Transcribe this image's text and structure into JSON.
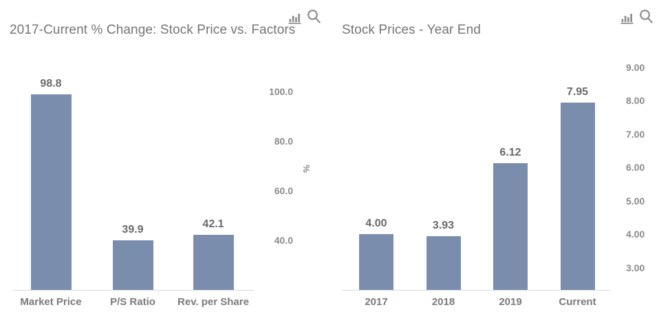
{
  "colors": {
    "bar": "#7a8dac",
    "title_text": "#757575",
    "value_label_text": "#696969",
    "category_label_text": "#7a7a7a",
    "tick_label_text": "#8b8b8b",
    "axis_line": "#d9d9d9",
    "icon": "#8a8a8a"
  },
  "toolbar": {
    "chart_type_button_icon": "bar-chart-icon",
    "zoom_button_icon": "magnifier-icon"
  },
  "chart_data": [
    {
      "type": "bar",
      "title": "2017-Current % Change: Stock Price vs. Factors",
      "categories": [
        "Market Price",
        "P/S Ratio",
        "Rev. per Share"
      ],
      "values": [
        98.8,
        39.9,
        42.1
      ],
      "value_labels": [
        "98.8",
        "39.9",
        "42.1"
      ],
      "xlabel": "",
      "ylabel": "%",
      "ylim": [
        20,
        110
      ],
      "y_ticks": [
        {
          "label": "100.0",
          "value": 100
        },
        {
          "label": "80.0",
          "value": 80
        },
        {
          "label": "60.0",
          "value": 60
        },
        {
          "label": "40.0",
          "value": 40
        }
      ],
      "y_axis_side": "right",
      "grid": false,
      "legend": "none"
    },
    {
      "type": "bar",
      "title": "Stock Prices - Year End",
      "categories": [
        "2017",
        "2018",
        "2019",
        "Current"
      ],
      "values": [
        4.0,
        3.93,
        6.12,
        7.95
      ],
      "value_labels": [
        "4.00",
        "3.93",
        "6.12",
        "7.95"
      ],
      "xlabel": "",
      "ylabel": "",
      "ylim": [
        2.33,
        9.2
      ],
      "y_ticks": [
        {
          "label": "9.00",
          "value": 9
        },
        {
          "label": "8.00",
          "value": 8
        },
        {
          "label": "7.00",
          "value": 7
        },
        {
          "label": "6.00",
          "value": 6
        },
        {
          "label": "5.00",
          "value": 5
        },
        {
          "label": "4.00",
          "value": 4
        },
        {
          "label": "3.00",
          "value": 3
        }
      ],
      "y_axis_side": "right",
      "grid": false,
      "legend": "none"
    }
  ]
}
